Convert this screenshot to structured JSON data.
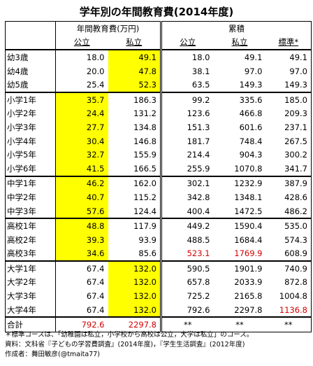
{
  "title": "学年別の年間教育費(2014年度)",
  "header": {
    "group1": "年間教育費(万円)",
    "group2": "累積",
    "public": "公立",
    "private": "私立",
    "standard": "標準*"
  },
  "rows": [
    {
      "label": "幼3歳",
      "a": "18.0",
      "b": "49.1",
      "c": "18.0",
      "d": "49.1",
      "e": "49.1"
    },
    {
      "label": "幼4歳",
      "a": "20.0",
      "b": "47.8",
      "c": "38.1",
      "d": "97.0",
      "e": "97.0"
    },
    {
      "label": "幼5歳",
      "a": "25.4",
      "b": "52.3",
      "c": "63.5",
      "d": "149.3",
      "e": "149.3"
    },
    {
      "label": "小学1年",
      "a": "35.7",
      "b": "186.3",
      "c": "99.2",
      "d": "335.6",
      "e": "185.0"
    },
    {
      "label": "小学2年",
      "a": "24.4",
      "b": "131.2",
      "c": "123.6",
      "d": "466.8",
      "e": "209.3"
    },
    {
      "label": "小学3年",
      "a": "27.7",
      "b": "134.8",
      "c": "151.3",
      "d": "601.6",
      "e": "237.1"
    },
    {
      "label": "小学4年",
      "a": "30.4",
      "b": "146.8",
      "c": "181.7",
      "d": "748.4",
      "e": "267.5"
    },
    {
      "label": "小学5年",
      "a": "32.7",
      "b": "155.9",
      "c": "214.4",
      "d": "904.3",
      "e": "300.2"
    },
    {
      "label": "小学6年",
      "a": "41.5",
      "b": "166.5",
      "c": "255.9",
      "d": "1070.8",
      "e": "341.7"
    },
    {
      "label": "中学1年",
      "a": "46.2",
      "b": "162.0",
      "c": "302.1",
      "d": "1232.9",
      "e": "387.9"
    },
    {
      "label": "中学2年",
      "a": "40.7",
      "b": "115.2",
      "c": "342.8",
      "d": "1348.1",
      "e": "428.6"
    },
    {
      "label": "中学3年",
      "a": "57.6",
      "b": "124.4",
      "c": "400.4",
      "d": "1472.5",
      "e": "486.2"
    },
    {
      "label": "高校1年",
      "a": "48.8",
      "b": "117.9",
      "c": "449.2",
      "d": "1590.4",
      "e": "535.0"
    },
    {
      "label": "高校2年",
      "a": "39.3",
      "b": "93.9",
      "c": "488.5",
      "d": "1684.4",
      "e": "574.3"
    },
    {
      "label": "高校3年",
      "a": "34.6",
      "b": "85.6",
      "c": "523.1",
      "d": "1769.9",
      "e": "608.9"
    },
    {
      "label": "大学1年",
      "a": "67.4",
      "b": "132.0",
      "c": "590.5",
      "d": "1901.9",
      "e": "740.9"
    },
    {
      "label": "大学2年",
      "a": "67.4",
      "b": "132.0",
      "c": "657.8",
      "d": "2033.9",
      "e": "872.8"
    },
    {
      "label": "大学3年",
      "a": "67.4",
      "b": "132.0",
      "c": "725.2",
      "d": "2165.8",
      "e": "1004.8"
    },
    {
      "label": "大学4年",
      "a": "67.4",
      "b": "132.0",
      "c": "792.6",
      "d": "2297.8",
      "e": "1136.8"
    }
  ],
  "total": {
    "label": "合計",
    "a": "792.6",
    "b": "2297.8",
    "c": "**",
    "d": "**",
    "e": "**"
  },
  "highlight_color": "#ffff00",
  "emphasis_color": "#d40000",
  "notes": {
    "line1": "＊標準コースは、「幼稚園は私立，小学校から高校は公立，大学は私立」のコース。",
    "line2": "資料：文科省『子どもの学習費調査』(2014年度)，『学生生活調査』(2012年度)",
    "line3": "作成者：舞田敏彦(@tmaita77)"
  }
}
